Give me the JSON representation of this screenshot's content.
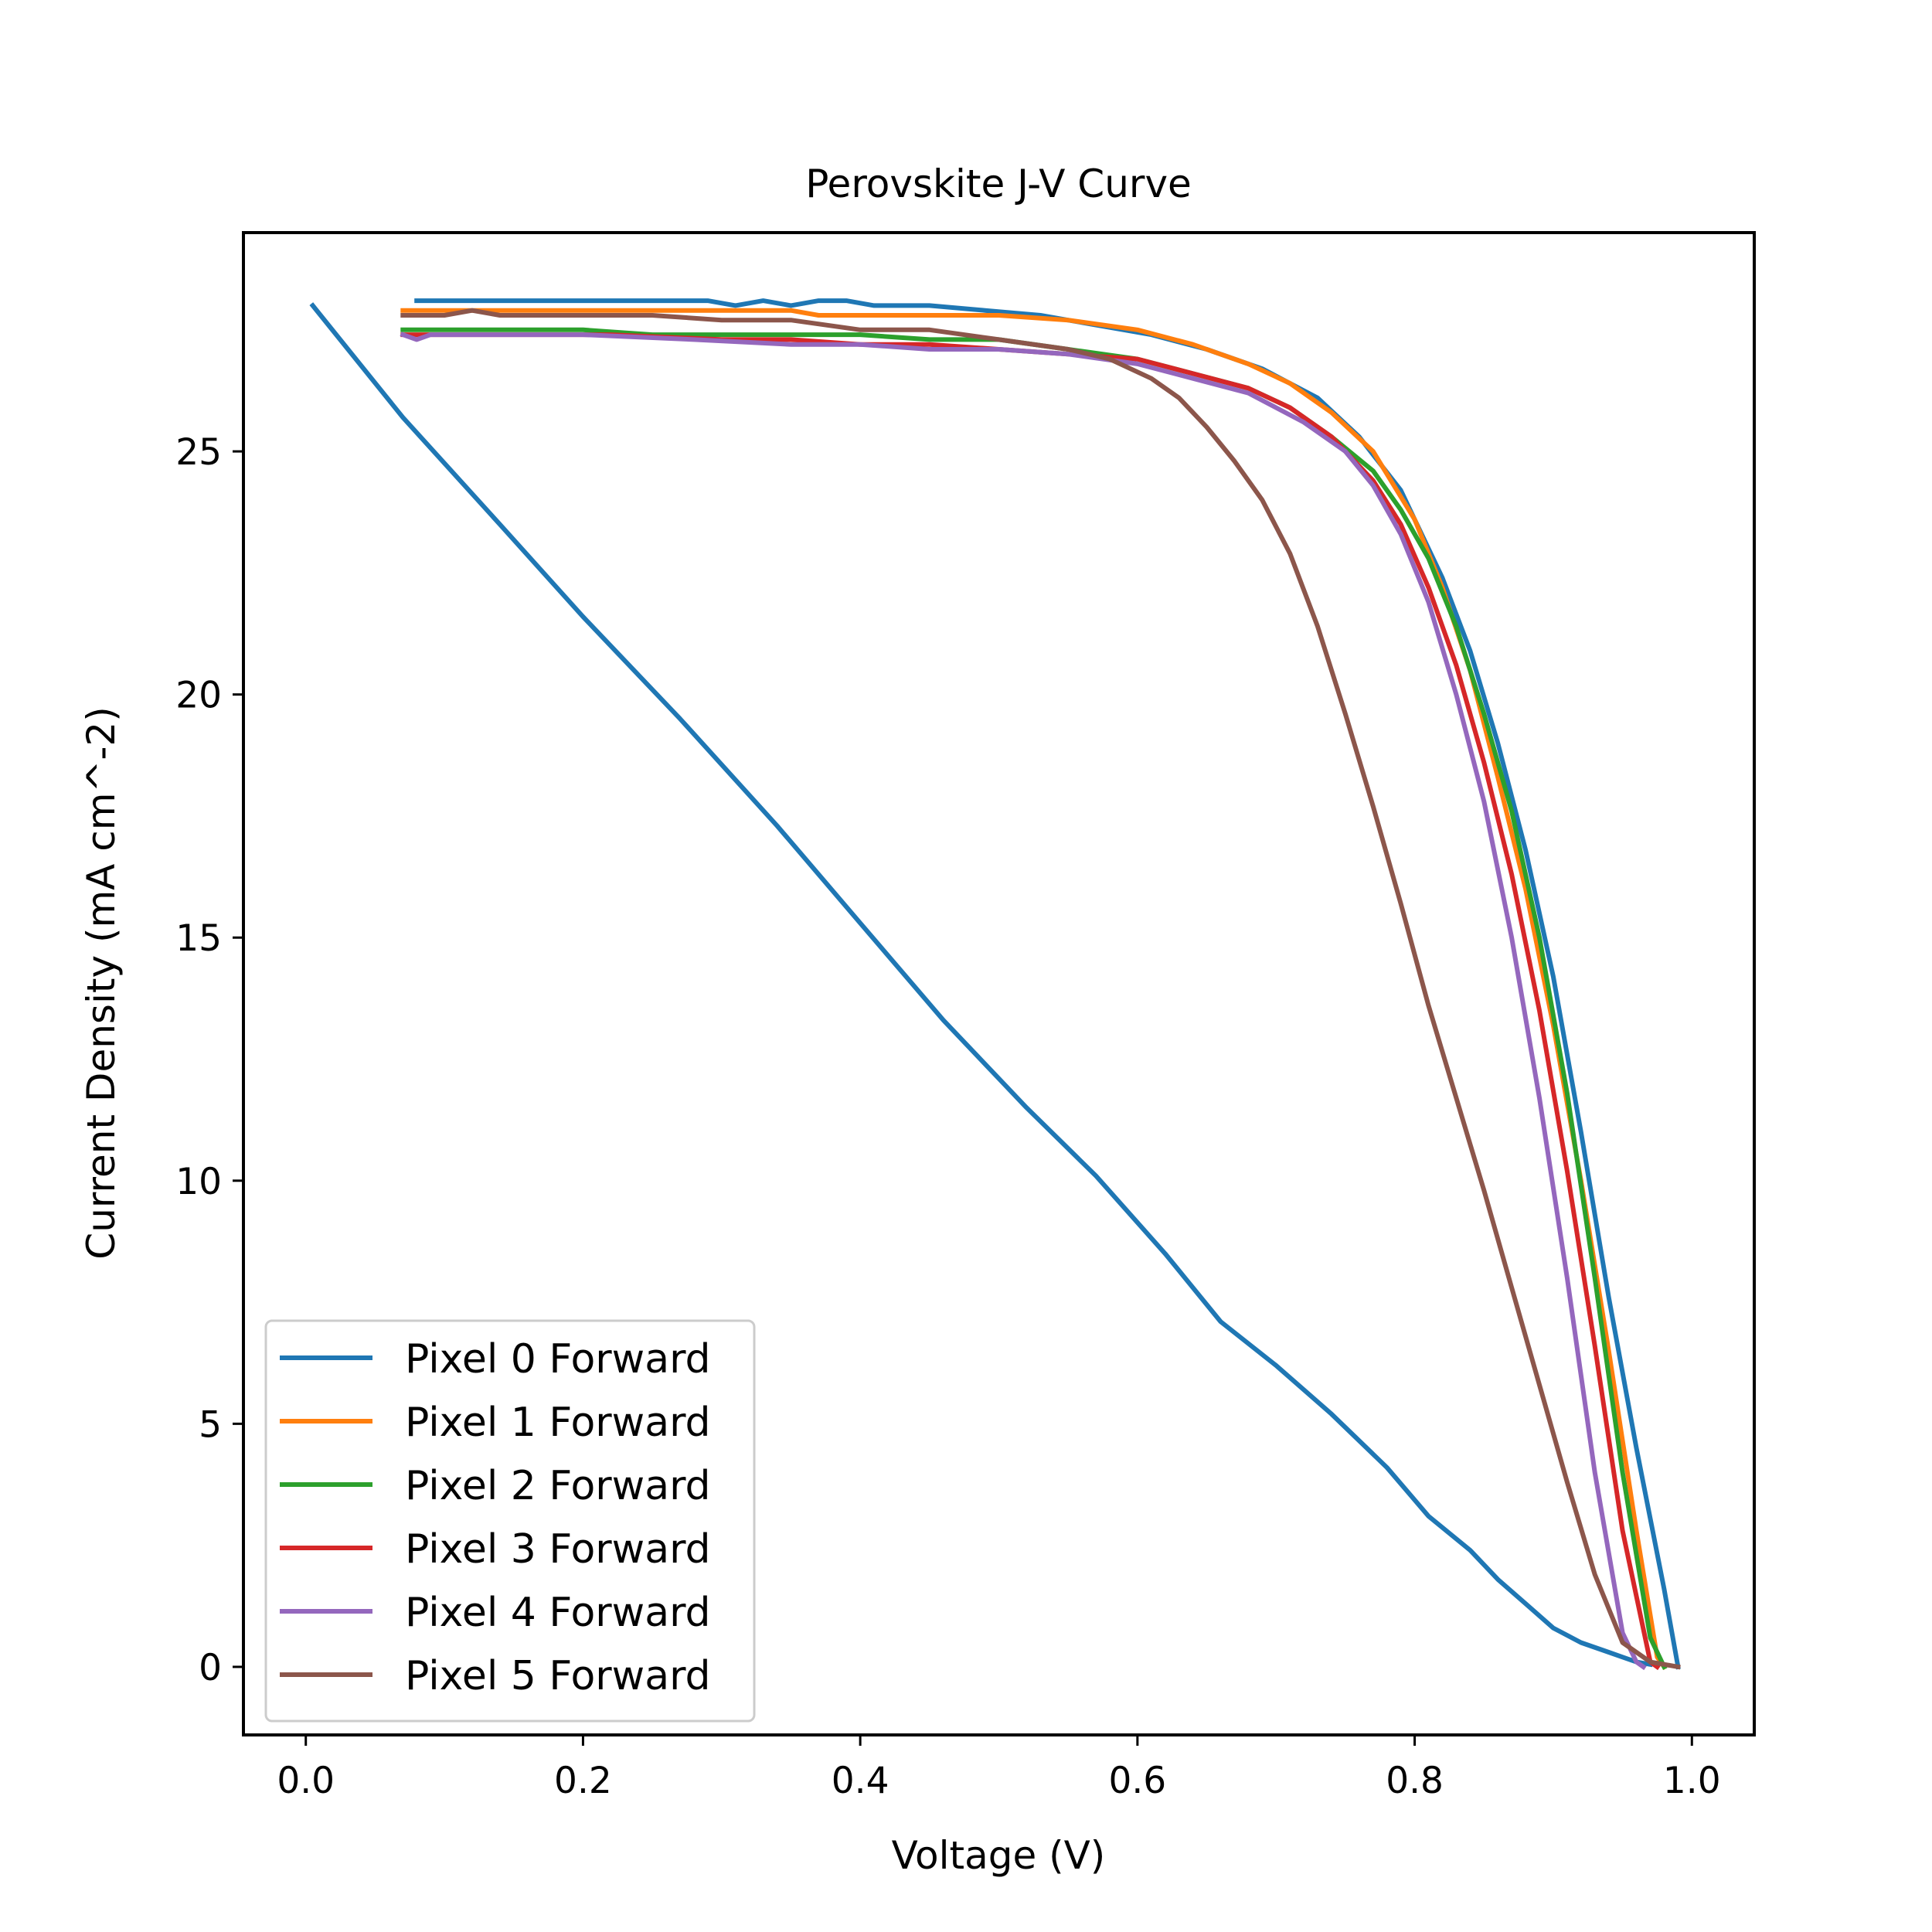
{
  "chart_data": {
    "type": "line",
    "title": "Perovskite J-V Curve",
    "xlabel": "Voltage (V)",
    "ylabel": "Current Density (mA cm^-2)",
    "xlim": [
      -0.045,
      1.045
    ],
    "ylim": [
      -1.4,
      29.5
    ],
    "xticks": [
      0.0,
      0.2,
      0.4,
      0.6,
      0.8,
      1.0
    ],
    "xtick_labels": [
      "0.0",
      "0.2",
      "0.4",
      "0.6",
      "0.8",
      "1.0"
    ],
    "yticks": [
      0,
      5,
      10,
      15,
      20,
      25
    ],
    "ytick_labels": [
      "0",
      "5",
      "10",
      "15",
      "20",
      "25"
    ],
    "grid": false,
    "legend_position": "lower-left",
    "series": [
      {
        "name": "Pixel 0 Forward",
        "color": "#1f77b4",
        "x": [
          0.005,
          0.07,
          0.14,
          0.2,
          0.27,
          0.34,
          0.4,
          0.46,
          0.52,
          0.57,
          0.62,
          0.66,
          0.7,
          0.74,
          0.78,
          0.81,
          0.84,
          0.86,
          0.88,
          0.9,
          0.92,
          0.94,
          0.95,
          0.96,
          0.97
        ],
        "y": [
          28.0,
          25.7,
          23.5,
          21.6,
          19.5,
          17.3,
          15.3,
          13.3,
          11.5,
          10.1,
          8.5,
          7.1,
          6.2,
          5.2,
          4.1,
          3.1,
          2.4,
          1.8,
          1.3,
          0.8,
          0.5,
          0.3,
          0.2,
          0.1,
          0.05
        ]
      },
      {
        "name": "Pixel 0 Forward",
        "color": "#1f77b4",
        "x": [
          0.08,
          0.15,
          0.22,
          0.29,
          0.31,
          0.33,
          0.35,
          0.37,
          0.39,
          0.41,
          0.45,
          0.49,
          0.53,
          0.57,
          0.61,
          0.65,
          0.69,
          0.73,
          0.76,
          0.79,
          0.82,
          0.84,
          0.86,
          0.88,
          0.9,
          0.92,
          0.94,
          0.96,
          0.98,
          0.99
        ],
        "y": [
          28.1,
          28.1,
          28.1,
          28.1,
          28.0,
          28.1,
          28.0,
          28.1,
          28.1,
          28.0,
          28.0,
          27.9,
          27.8,
          27.6,
          27.4,
          27.1,
          26.7,
          26.1,
          25.3,
          24.2,
          22.4,
          20.9,
          19.0,
          16.8,
          14.2,
          11.0,
          7.6,
          4.5,
          1.6,
          0.0
        ]
      },
      {
        "name": "Pixel 1 Forward",
        "color": "#ff7f0e",
        "x": [
          0.07,
          0.15,
          0.22,
          0.3,
          0.35,
          0.37,
          0.4,
          0.45,
          0.5,
          0.55,
          0.6,
          0.64,
          0.68,
          0.71,
          0.74,
          0.77,
          0.8,
          0.82,
          0.84,
          0.86,
          0.88,
          0.9,
          0.92,
          0.94,
          0.96,
          0.975,
          0.98
        ],
        "y": [
          27.9,
          27.9,
          27.9,
          27.9,
          27.9,
          27.8,
          27.8,
          27.8,
          27.8,
          27.7,
          27.5,
          27.2,
          26.8,
          26.4,
          25.8,
          25.0,
          23.6,
          22.2,
          20.5,
          18.3,
          16.0,
          13.2,
          10.0,
          6.5,
          2.8,
          0.2,
          0.0
        ]
      },
      {
        "name": "Pixel 2 Forward",
        "color": "#2ca02c",
        "x": [
          0.07,
          0.14,
          0.2,
          0.25,
          0.3,
          0.35,
          0.4,
          0.45,
          0.5,
          0.55,
          0.6,
          0.64,
          0.68,
          0.71,
          0.74,
          0.77,
          0.79,
          0.81,
          0.83,
          0.85,
          0.87,
          0.89,
          0.91,
          0.93,
          0.95,
          0.97,
          0.98
        ],
        "y": [
          27.5,
          27.5,
          27.5,
          27.4,
          27.4,
          27.4,
          27.4,
          27.3,
          27.3,
          27.1,
          26.9,
          26.6,
          26.3,
          25.9,
          25.3,
          24.6,
          23.8,
          22.8,
          21.4,
          19.6,
          17.6,
          15.0,
          11.8,
          8.0,
          4.0,
          0.6,
          0.0
        ]
      },
      {
        "name": "Pixel 3 Forward",
        "color": "#d62728",
        "x": [
          0.07,
          0.15,
          0.22,
          0.3,
          0.35,
          0.4,
          0.45,
          0.5,
          0.55,
          0.6,
          0.64,
          0.68,
          0.71,
          0.74,
          0.77,
          0.79,
          0.81,
          0.83,
          0.85,
          0.87,
          0.89,
          0.91,
          0.93,
          0.95,
          0.97,
          0.975
        ],
        "y": [
          27.4,
          27.4,
          27.4,
          27.3,
          27.3,
          27.2,
          27.2,
          27.1,
          27.0,
          26.9,
          26.6,
          26.3,
          25.9,
          25.3,
          24.4,
          23.5,
          22.2,
          20.6,
          18.6,
          16.3,
          13.5,
          10.2,
          6.6,
          2.8,
          0.1,
          0.0
        ]
      },
      {
        "name": "Pixel 4 Forward",
        "color": "#9467bd",
        "x": [
          0.07,
          0.08,
          0.09,
          0.15,
          0.2,
          0.28,
          0.35,
          0.4,
          0.45,
          0.5,
          0.55,
          0.6,
          0.64,
          0.68,
          0.7,
          0.72,
          0.75,
          0.77,
          0.79,
          0.81,
          0.83,
          0.85,
          0.87,
          0.89,
          0.91,
          0.93,
          0.95,
          0.96,
          0.965
        ],
        "y": [
          27.4,
          27.3,
          27.4,
          27.4,
          27.4,
          27.3,
          27.2,
          27.2,
          27.1,
          27.1,
          27.0,
          26.8,
          26.5,
          26.2,
          25.9,
          25.6,
          25.0,
          24.3,
          23.3,
          21.9,
          20.0,
          17.8,
          15.0,
          11.7,
          8.0,
          4.0,
          0.7,
          0.1,
          0.0
        ]
      },
      {
        "name": "Pixel 5 Forward",
        "color": "#8c564b",
        "x": [
          0.07,
          0.1,
          0.12,
          0.14,
          0.2,
          0.25,
          0.3,
          0.35,
          0.4,
          0.45,
          0.5,
          0.55,
          0.58,
          0.61,
          0.63,
          0.65,
          0.67,
          0.69,
          0.71,
          0.73,
          0.75,
          0.77,
          0.79,
          0.81,
          0.83,
          0.85,
          0.87,
          0.89,
          0.91,
          0.93,
          0.95,
          0.97,
          0.99
        ],
        "y": [
          27.8,
          27.8,
          27.9,
          27.8,
          27.8,
          27.8,
          27.7,
          27.7,
          27.5,
          27.5,
          27.3,
          27.1,
          26.9,
          26.5,
          26.1,
          25.5,
          24.8,
          24.0,
          22.9,
          21.4,
          19.6,
          17.7,
          15.7,
          13.6,
          11.7,
          9.8,
          7.8,
          5.8,
          3.8,
          1.9,
          0.5,
          0.1,
          0.0
        ]
      }
    ],
    "legend": [
      {
        "name": "Pixel 0 Forward",
        "color": "#1f77b4"
      },
      {
        "name": "Pixel 1 Forward",
        "color": "#ff7f0e"
      },
      {
        "name": "Pixel 2 Forward",
        "color": "#2ca02c"
      },
      {
        "name": "Pixel 3 Forward",
        "color": "#d62728"
      },
      {
        "name": "Pixel 4 Forward",
        "color": "#9467bd"
      },
      {
        "name": "Pixel 5 Forward",
        "color": "#8c564b"
      }
    ]
  }
}
